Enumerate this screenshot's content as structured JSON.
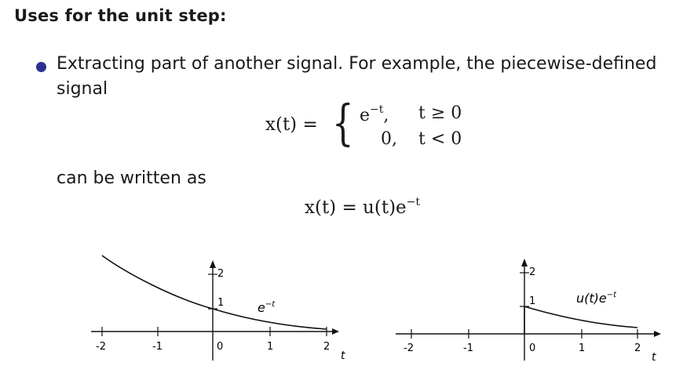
{
  "heading": "Uses for the unit step:",
  "bullet": {
    "text": "Extracting part of another signal. For example, the piecewise-defined signal"
  },
  "formula1": {
    "lhs": "x(t) =",
    "case1_val": "e",
    "case1_exp": "−t",
    "case1_sep": ",",
    "case1_cond": "t ≥ 0",
    "case2_val": "0,",
    "case2_cond": "t < 0"
  },
  "can_be_written": "can be written as",
  "formula2": {
    "lhs": "x(t) = u(t)e",
    "exp": "−t"
  },
  "plot_left": {
    "ticks": [
      "-2",
      "-1",
      "0",
      "1",
      "2"
    ],
    "y_ticks": [
      "1",
      "2"
    ],
    "axis_label": "t",
    "curve_label_base": "e",
    "curve_label_exp": "−t"
  },
  "plot_right": {
    "ticks": [
      "-2",
      "-1",
      "0",
      "1",
      "2"
    ],
    "y_ticks": [
      "1",
      "2"
    ],
    "axis_label": "t",
    "curve_label_base": "u(t)e",
    "curve_label_exp": "−t"
  }
}
